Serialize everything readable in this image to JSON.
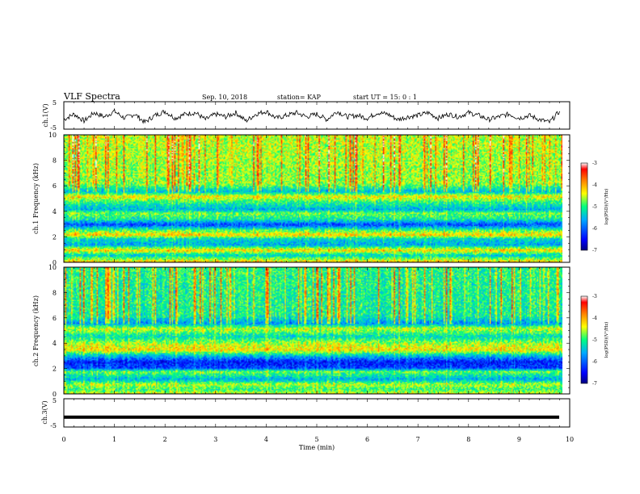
{
  "header": {
    "title": "VLF Spectra",
    "date": "Sep. 10, 2018",
    "station": "station= KAP",
    "start": "start  UT =   15: 0  : 1"
  },
  "chart_data": [
    {
      "type": "line",
      "name": "ch1-waveform",
      "title": "",
      "xlabel": "",
      "ylabel": "ch.1(V)",
      "xlim": [
        0,
        10
      ],
      "ylim": [
        -5,
        5
      ],
      "y_ticks": [
        "5",
        "-5"
      ],
      "series": [
        {
          "name": "ch.1",
          "x": [
            0,
            0.2,
            0.4,
            0.6,
            0.8,
            1.0,
            1.2,
            1.4,
            1.6,
            1.8,
            2.0,
            2.2,
            2.4,
            2.6,
            2.8,
            3.0,
            3.2,
            3.4,
            3.6,
            3.8,
            4.0,
            4.2,
            4.4,
            4.6,
            4.8,
            5.0,
            5.2,
            5.4,
            5.6,
            5.8,
            6.0,
            6.2,
            6.4,
            6.6,
            6.8,
            7.0,
            7.2,
            7.4,
            7.6,
            7.8,
            8.0,
            8.2,
            8.4,
            8.6,
            8.8,
            9.0,
            9.2,
            9.4,
            9.6,
            9.8
          ],
          "values": [
            -1.5,
            0.5,
            -2.0,
            1.0,
            -0.5,
            1.5,
            -1.0,
            0.5,
            -2.5,
            0.0,
            1.5,
            -1.0,
            0.5,
            1.0,
            -1.5,
            0.5,
            -0.5,
            1.0,
            -2.0,
            0.5,
            1.5,
            -1.0,
            0.0,
            1.0,
            -0.5,
            0.5,
            -1.5,
            1.5,
            -0.5,
            0.0,
            -1.0,
            1.0,
            0.5,
            -1.5,
            -0.5,
            0.0,
            1.0,
            -1.0,
            0.5,
            -0.5,
            1.0,
            0.0,
            -1.5,
            -0.5,
            0.5,
            -1.0,
            0.0,
            -1.5,
            -2.5,
            1.5
          ]
        }
      ]
    },
    {
      "type": "heatmap",
      "name": "ch1-spectrogram",
      "title": "",
      "xlabel": "",
      "ylabel": "ch.1\nFrequency (kHz)",
      "xlim": [
        0,
        9.85
      ],
      "ylim": [
        0,
        10
      ],
      "y_ticks": [
        "0",
        "2",
        "4",
        "6",
        "8",
        "10"
      ],
      "colorbar": {
        "label": "log(PSD)(V²/Hz)",
        "range": [
          -7,
          -3
        ],
        "ticks": [
          "-3",
          "-4",
          "-5",
          "-6",
          "-7"
        ]
      },
      "band_profile_khz": [
        [
          10.0,
          -4.5
        ],
        [
          6.2,
          -4.7
        ],
        [
          5.6,
          -5.5
        ],
        [
          5.2,
          -4.3
        ],
        [
          4.8,
          -5.0
        ],
        [
          4.2,
          -5.6
        ],
        [
          3.9,
          -4.8
        ],
        [
          3.4,
          -5.2
        ],
        [
          3.0,
          -6.2
        ],
        [
          2.6,
          -5.0
        ],
        [
          2.2,
          -4.2
        ],
        [
          1.9,
          -5.3
        ],
        [
          1.4,
          -5.6
        ],
        [
          1.0,
          -4.2
        ],
        [
          0.6,
          -5.4
        ],
        [
          0.0,
          -4.0
        ]
      ]
    },
    {
      "type": "heatmap",
      "name": "ch2-spectrogram",
      "title": "",
      "xlabel": "",
      "ylabel": "ch.2\nFrequency (kHz)",
      "xlim": [
        0,
        9.85
      ],
      "ylim": [
        0,
        10
      ],
      "y_ticks": [
        "0",
        "2",
        "4",
        "6",
        "8",
        "10"
      ],
      "colorbar": {
        "label": "log(PSD)(V²/Hz)",
        "range": [
          -7,
          -3
        ],
        "ticks": [
          "-3",
          "-4",
          "-5",
          "-6",
          "-7"
        ]
      },
      "band_profile_khz": [
        [
          10.0,
          -5.0
        ],
        [
          6.2,
          -5.1
        ],
        [
          5.6,
          -5.7
        ],
        [
          5.2,
          -4.5
        ],
        [
          4.6,
          -5.3
        ],
        [
          4.0,
          -4.6
        ],
        [
          3.5,
          -4.3
        ],
        [
          3.1,
          -5.4
        ],
        [
          2.6,
          -6.4
        ],
        [
          2.1,
          -6.2
        ],
        [
          1.8,
          -4.8
        ],
        [
          1.2,
          -5.6
        ],
        [
          0.8,
          -4.6
        ],
        [
          0.4,
          -5.0
        ],
        [
          0.0,
          -4.4
        ]
      ]
    },
    {
      "type": "line",
      "name": "ch3-waveform",
      "title": "",
      "xlabel": "Time  (min)",
      "ylabel": "ch.3(V)",
      "xlim": [
        0,
        10
      ],
      "ylim": [
        -5,
        5
      ],
      "y_ticks": [
        "5",
        "-5"
      ],
      "x_ticks": [
        "0",
        "1",
        "2",
        "3",
        "4",
        "5",
        "6",
        "7",
        "8",
        "9",
        "10"
      ],
      "series": [
        {
          "name": "ch.3",
          "x": [
            0,
            9.85
          ],
          "values": [
            -1.5,
            -1.5
          ]
        }
      ]
    }
  ],
  "colors": {
    "colormap": [
      "#000080",
      "#0000ff",
      "#00aaff",
      "#00ff80",
      "#ffff00",
      "#ff8000",
      "#ff0000",
      "#ffffff"
    ],
    "trace": "#000000",
    "axis": "#000000"
  }
}
